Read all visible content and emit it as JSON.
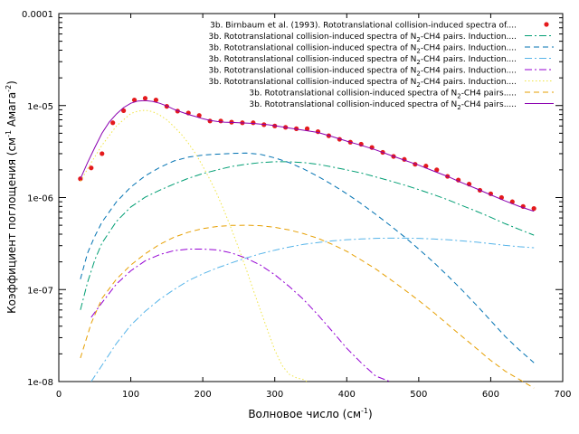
{
  "chart_data": {
    "type": "line",
    "xlabel": "Волновое число (см",
    "xlabel_sup": "-1",
    "xlabel_tail": ")",
    "ylabel_main": "Коэффициент поглощения (см",
    "ylabel_sup1": "-1",
    "ylabel_mid": " Амага",
    "ylabel_sup2": "-2",
    "ylabel_tail": ")",
    "xlim": [
      0,
      700
    ],
    "ylim": [
      1e-08,
      0.0001
    ],
    "yscale": "log",
    "xticks": [
      "0",
      "100",
      "200",
      "300",
      "400",
      "500",
      "600",
      "700"
    ],
    "xtick_values": [
      0,
      100,
      200,
      300,
      400,
      500,
      600,
      700
    ],
    "yticks": [
      "1e-08",
      "1e-07",
      "1e-06",
      "1e-05",
      "0.0001"
    ],
    "ytick_values": [
      1e-08,
      1e-07,
      1e-06,
      1e-05,
      0.0001
    ],
    "legend_position": "top-right",
    "series": [
      {
        "label_pre": "3b. Birnbaum et al. (1993). Rototranslational collision-induced spectra of....",
        "label_sub": "",
        "label_post": "",
        "color": "#e41a1c",
        "style": "points",
        "x": [
          30,
          45,
          60,
          75,
          90,
          105,
          120,
          135,
          150,
          165,
          180,
          195,
          210,
          225,
          240,
          255,
          270,
          285,
          300,
          315,
          330,
          345,
          360,
          375,
          390,
          405,
          420,
          435,
          450,
          465,
          480,
          495,
          510,
          525,
          540,
          555,
          570,
          585,
          600,
          615,
          630,
          645,
          660
        ],
        "y": [
          1.6e-06,
          2.1e-06,
          3e-06,
          6.5e-06,
          8.8e-06,
          1.15e-05,
          1.2e-05,
          1.15e-05,
          9.8e-06,
          8.7e-06,
          8.3e-06,
          7.8e-06,
          6.8e-06,
          6.8e-06,
          6.6e-06,
          6.5e-06,
          6.5e-06,
          6.2e-06,
          6e-06,
          5.8e-06,
          5.6e-06,
          5.6e-06,
          5.2e-06,
          4.7e-06,
          4.3e-06,
          4e-06,
          3.8e-06,
          3.5e-06,
          3.1e-06,
          2.8e-06,
          2.6e-06,
          2.3e-06,
          2.2e-06,
          2e-06,
          1.7e-06,
          1.55e-06,
          1.4e-06,
          1.2e-06,
          1.1e-06,
          1e-06,
          9e-07,
          8e-07,
          7.6e-07
        ]
      },
      {
        "label_pre": "3b. Rototranslational collision-induced spectra of N",
        "label_sub": "2",
        "label_post": "-CH4 pairs. Induction....",
        "color": "#009e73",
        "style": "dashdot",
        "x": [
          30,
          40,
          50,
          60,
          80,
          100,
          120,
          140,
          160,
          180,
          200,
          220,
          240,
          260,
          280,
          300,
          320,
          340,
          360,
          380,
          400,
          420,
          440,
          460,
          480,
          500,
          520,
          540,
          560,
          580,
          600,
          620,
          640,
          660
        ],
        "y": [
          6e-08,
          1.2e-07,
          2.1e-07,
          3.2e-07,
          5.5e-07,
          7.9e-07,
          1.01e-06,
          1.2e-06,
          1.4e-06,
          1.62e-06,
          1.82e-06,
          2e-06,
          2.18e-06,
          2.3e-06,
          2.4e-06,
          2.45e-06,
          2.45e-06,
          2.4e-06,
          2.3e-06,
          2.15e-06,
          2e-06,
          1.85e-06,
          1.68e-06,
          1.52e-06,
          1.37e-06,
          1.22e-06,
          1.08e-06,
          9.5e-07,
          8.2e-07,
          7.1e-07,
          6.1e-07,
          5.2e-07,
          4.5e-07,
          3.9e-07
        ]
      },
      {
        "label_pre": "3b. Rototranslational collision-induced spectra of N",
        "label_sub": "2",
        "label_post": "-CH4 pairs. Induction....",
        "color": "#0072b2",
        "style": "dashed",
        "x": [
          30,
          40,
          50,
          60,
          80,
          100,
          120,
          140,
          160,
          180,
          200,
          220,
          240,
          260,
          280,
          300,
          320,
          340,
          360,
          380,
          400,
          420,
          440,
          460,
          480,
          500,
          520,
          540,
          560,
          580,
          600,
          620,
          640,
          660
        ],
        "y": [
          1.3e-07,
          2.5e-07,
          3.8e-07,
          5.4e-07,
          9e-07,
          1.3e-06,
          1.72e-06,
          2.12e-06,
          2.5e-06,
          2.75e-06,
          2.9e-06,
          2.96e-06,
          3.02e-06,
          3.05e-06,
          2.95e-06,
          2.7e-06,
          2.4e-06,
          2.05e-06,
          1.7e-06,
          1.38e-06,
          1.1e-06,
          8.6e-07,
          6.6e-07,
          5e-07,
          3.75e-07,
          2.75e-07,
          2e-07,
          1.42e-07,
          9.9e-08,
          6.8e-08,
          4.6e-08,
          3.1e-08,
          2.2e-08,
          1.6e-08
        ]
      },
      {
        "label_pre": "3b. Rototranslational collision-induced spectra of N",
        "label_sub": "2",
        "label_post": "-CH4 pairs. Induction....",
        "color": "#56b4e9",
        "style": "dashdot",
        "x": [
          45,
          60,
          80,
          100,
          120,
          140,
          160,
          180,
          200,
          220,
          240,
          260,
          280,
          300,
          320,
          340,
          360,
          380,
          400,
          420,
          440,
          460,
          480,
          500,
          520,
          540,
          560,
          580,
          600,
          620,
          640,
          660
        ],
        "y": [
          1e-08,
          1.5e-08,
          2.6e-08,
          4.1e-08,
          5.8e-08,
          7.8e-08,
          1e-07,
          1.25e-07,
          1.48e-07,
          1.72e-07,
          1.95e-07,
          2.2e-07,
          2.45e-07,
          2.68e-07,
          2.9e-07,
          3.1e-07,
          3.25e-07,
          3.38e-07,
          3.48e-07,
          3.55e-07,
          3.6e-07,
          3.62e-07,
          3.62e-07,
          3.6e-07,
          3.55e-07,
          3.48e-07,
          3.38e-07,
          3.28e-07,
          3.15e-07,
          3.02e-07,
          2.92e-07,
          2.85e-07
        ]
      },
      {
        "label_pre": "3b. Rototranslational collision-induced spectra of N",
        "label_sub": "2",
        "label_post": "-CH4 pairs. Induction....",
        "color": "#9400d3",
        "style": "dashdot",
        "x": [
          45,
          60,
          80,
          100,
          120,
          140,
          160,
          180,
          200,
          220,
          240,
          260,
          280,
          300,
          320,
          340,
          360,
          380,
          400,
          420,
          440,
          460
        ],
        "y": [
          5e-08,
          7.2e-08,
          1.15e-07,
          1.6e-07,
          2.05e-07,
          2.4e-07,
          2.65e-07,
          2.75e-07,
          2.75e-07,
          2.7e-07,
          2.5e-07,
          2.2e-07,
          1.85e-07,
          1.45e-07,
          1.08e-07,
          7.8e-08,
          5.3e-08,
          3.5e-08,
          2.3e-08,
          1.6e-08,
          1.15e-08,
          1e-08
        ]
      },
      {
        "label_pre": "3b. Rototranslational collision-induced spectra of N",
        "label_sub": "2",
        "label_post": "-CH4 pairs. Induction....",
        "color": "#f0e442",
        "style": "dotted",
        "x": [
          30,
          45,
          60,
          80,
          100,
          110,
          120,
          130,
          140,
          150,
          160,
          170,
          180,
          190,
          200,
          210,
          220,
          230,
          240,
          250,
          260,
          270,
          280,
          290,
          300,
          310,
          320,
          330,
          340,
          345
        ],
        "y": [
          1.5e-06,
          2.4e-06,
          3.7e-06,
          6e-06,
          8.2e-06,
          8.7e-06,
          8.9e-06,
          8.6e-06,
          7.9e-06,
          7e-06,
          5.9e-06,
          4.9e-06,
          3.9e-06,
          3e-06,
          2.2e-06,
          1.57e-06,
          1.08e-06,
          7.1e-07,
          4.5e-07,
          2.8e-07,
          1.7e-07,
          1e-07,
          6e-08,
          3.6e-08,
          2.2e-08,
          1.5e-08,
          1.2e-08,
          1.1e-08,
          1.05e-08,
          1e-08
        ]
      },
      {
        "label_pre": "3b. Rototranslational collision-induced spectra of N",
        "label_sub": "2",
        "label_post": "-CH4 pairs.....",
        "color": "#e69f00",
        "style": "dashed",
        "x": [
          30,
          45,
          60,
          80,
          100,
          120,
          140,
          160,
          180,
          200,
          220,
          240,
          260,
          280,
          300,
          320,
          340,
          360,
          380,
          400,
          420,
          440,
          460,
          480,
          500,
          520,
          540,
          560,
          580,
          600,
          620,
          640,
          660
        ],
        "y": [
          1.8e-08,
          4.3e-08,
          8e-08,
          1.3e-07,
          1.85e-07,
          2.45e-07,
          3.1e-07,
          3.7e-07,
          4.2e-07,
          4.6e-07,
          4.85e-07,
          4.98e-07,
          5e-07,
          4.95e-07,
          4.75e-07,
          4.45e-07,
          4.05e-07,
          3.6e-07,
          3.1e-07,
          2.6e-07,
          2.1e-07,
          1.68e-07,
          1.3e-07,
          1e-07,
          7.6e-08,
          5.7e-08,
          4.2e-08,
          3.1e-08,
          2.3e-08,
          1.7e-08,
          1.3e-08,
          1.05e-08,
          8.5e-09
        ]
      },
      {
        "label_pre": "3b. Rototranslational collision-induced spectra of N",
        "label_sub": "2",
        "label_post": "-CH4 pairs.....",
        "color": "#8b00b0",
        "style": "solid",
        "x": [
          30,
          40,
          50,
          60,
          70,
          80,
          90,
          100,
          110,
          120,
          130,
          140,
          150,
          160,
          170,
          180,
          190,
          200,
          210,
          220,
          230,
          240,
          250,
          260,
          270,
          280,
          290,
          300,
          320,
          340,
          360,
          380,
          400,
          420,
          440,
          460,
          480,
          500,
          520,
          540,
          560,
          580,
          600,
          620,
          640,
          660
        ],
        "y": [
          1.6e-06,
          2.4e-06,
          3.5e-06,
          5e-06,
          6.6e-06,
          8.1e-06,
          9.5e-06,
          1.06e-05,
          1.12e-05,
          1.13e-05,
          1.11e-05,
          1.06e-05,
          9.9e-06,
          9.1e-06,
          8.5e-06,
          8e-06,
          7.6e-06,
          7.2e-06,
          6.9e-06,
          6.7e-06,
          6.6e-06,
          6.55e-06,
          6.5e-06,
          6.45e-06,
          6.4e-06,
          6.3e-06,
          6.2e-06,
          6.05e-06,
          5.7e-06,
          5.4e-06,
          5.1e-06,
          4.6e-06,
          4.1e-06,
          3.7e-06,
          3.3e-06,
          2.9e-06,
          2.55e-06,
          2.25e-06,
          1.95e-06,
          1.7e-06,
          1.45e-06,
          1.25e-06,
          1.07e-06,
          9.2e-07,
          8e-07,
          7.1e-07
        ]
      }
    ]
  }
}
